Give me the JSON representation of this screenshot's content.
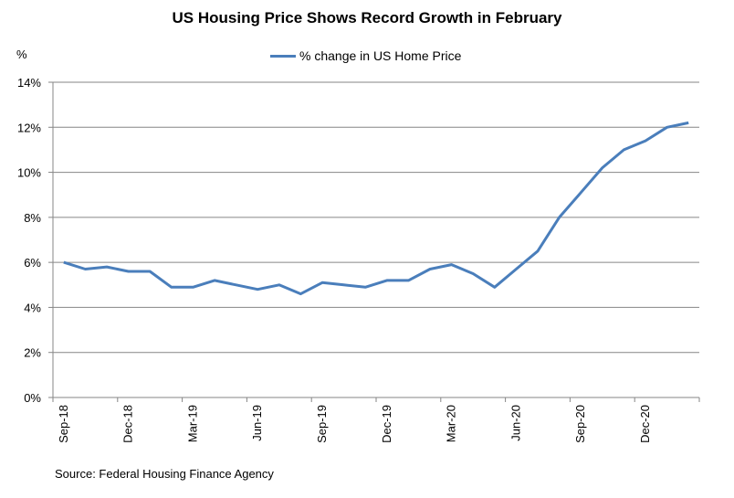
{
  "chart_data": {
    "type": "line",
    "title": "US Housing Price Shows Record Growth in February",
    "ylabel": "%",
    "xlabel": "",
    "ylim": [
      0,
      14
    ],
    "yticks": [
      "0%",
      "2%",
      "4%",
      "6%",
      "8%",
      "10%",
      "12%",
      "14%"
    ],
    "ytick_values": [
      0,
      2,
      4,
      6,
      8,
      10,
      12,
      14
    ],
    "grid": "horizontal",
    "legend": "top-center",
    "x": [
      "Sep-18",
      "Oct-18",
      "Nov-18",
      "Dec-18",
      "Jan-19",
      "Feb-19",
      "Mar-19",
      "Apr-19",
      "May-19",
      "Jun-19",
      "Jul-19",
      "Aug-19",
      "Sep-19",
      "Oct-19",
      "Nov-19",
      "Dec-19",
      "Jan-20",
      "Feb-20",
      "Mar-20",
      "Apr-20",
      "May-20",
      "Jun-20",
      "Jul-20",
      "Aug-20",
      "Sep-20",
      "Oct-20",
      "Nov-20",
      "Dec-20",
      "Jan-21",
      "Feb-21"
    ],
    "xtick_labels": [
      "Sep-18",
      "Dec-18",
      "Mar-19",
      "Jun-19",
      "Sep-19",
      "Dec-19",
      "Mar-20",
      "Jun-20",
      "Sep-20",
      "Dec-20"
    ],
    "series": [
      {
        "name": "% change in US Home Price",
        "color": "#4a7ebb",
        "values": [
          6.0,
          5.7,
          5.8,
          5.6,
          5.6,
          4.9,
          4.9,
          5.2,
          5.0,
          4.8,
          5.0,
          4.6,
          5.1,
          5.0,
          4.9,
          5.2,
          5.2,
          5.7,
          5.9,
          5.5,
          4.9,
          5.7,
          6.5,
          8.0,
          9.1,
          10.2,
          11.0,
          11.4,
          12.0,
          12.2
        ]
      }
    ],
    "source": "Source: Federal Housing Finance Agency"
  }
}
